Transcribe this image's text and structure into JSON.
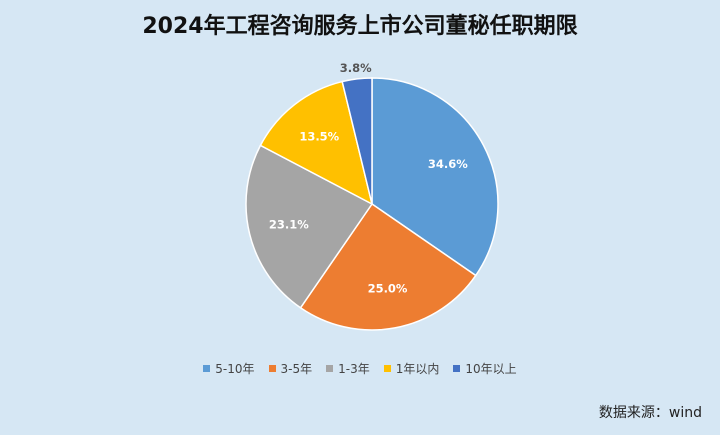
{
  "chart_data": {
    "type": "pie",
    "title": "2024年工程咨询服务上市公司董秘任职期限",
    "categories": [
      "5-10年",
      "3-5年",
      "1-3年",
      "1年以内",
      "10年以上"
    ],
    "values": [
      34.6,
      25.0,
      23.1,
      13.5,
      3.8
    ],
    "labels": [
      "34.6%",
      "25.0%",
      "23.1%",
      "13.5%",
      "3.8%"
    ],
    "colors": [
      "#5b9bd5",
      "#ed7d31",
      "#a5a5a5",
      "#ffc000",
      "#4472c4"
    ],
    "legend_position": "bottom",
    "start_angle": "top, clockwise"
  },
  "source": "数据来源：wind"
}
